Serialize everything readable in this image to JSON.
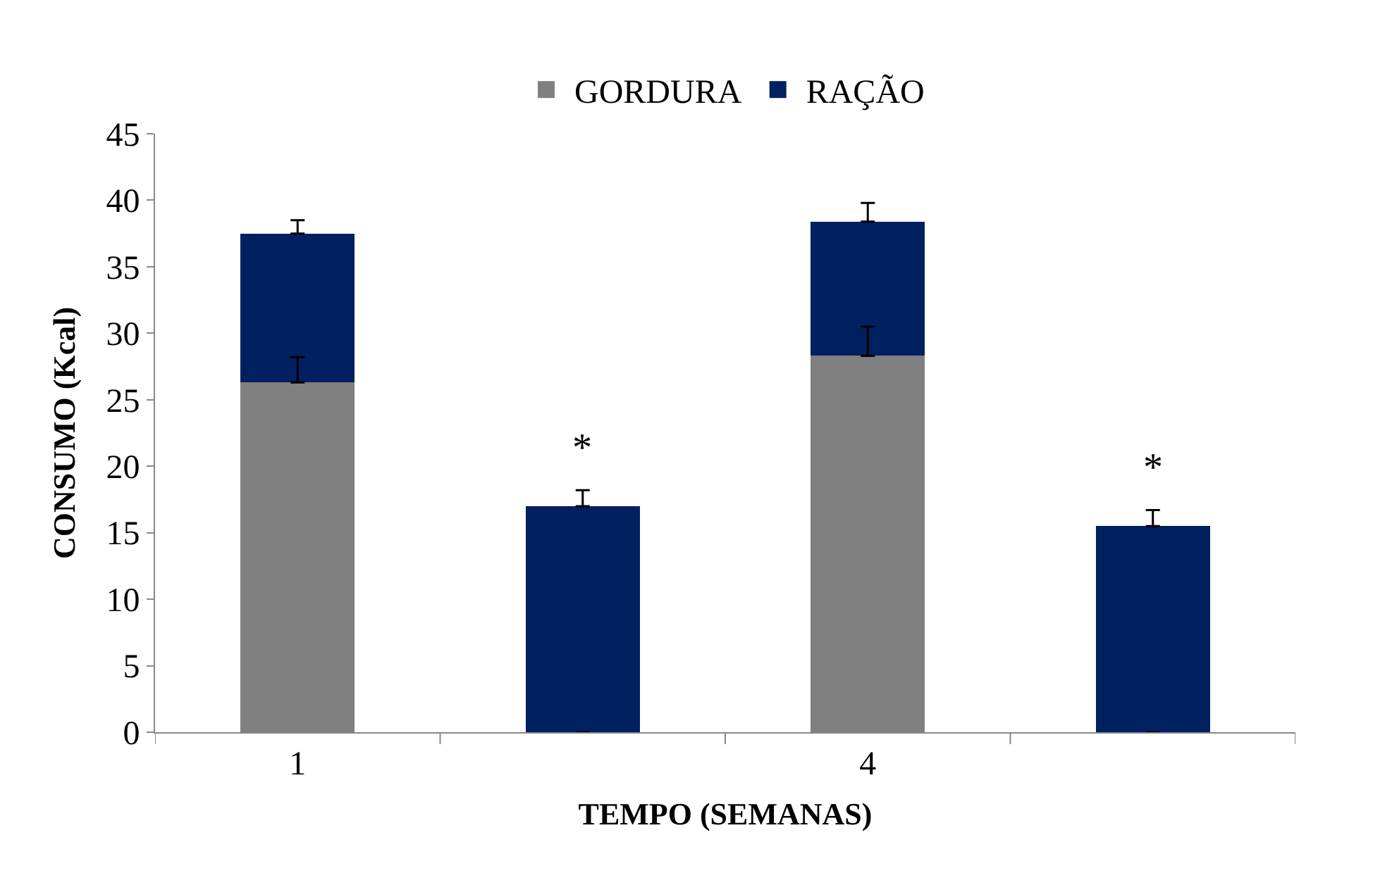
{
  "chart_data": {
    "type": "bar",
    "stacked": true,
    "xlabel": "TEMPO (SEMANAS)",
    "ylabel": "CONSUMO (Kcal)",
    "categories": [
      "1",
      null,
      "4",
      null
    ],
    "series": [
      {
        "name": "GORDURA",
        "color": "#808080",
        "values": [
          26.3,
          null,
          28.3,
          null
        ],
        "errors": [
          [
            26.3,
            28.2
          ],
          null,
          [
            28.3,
            30.5
          ],
          null
        ]
      },
      {
        "name": "RAÇÃO",
        "color": "#002060",
        "values": [
          11.2,
          17.0,
          10.1,
          15.5
        ],
        "errors": [
          [
            37.5,
            38.5
          ],
          [
            17.0,
            18.2
          ],
          [
            38.4,
            39.8
          ],
          [
            15.5,
            16.7
          ]
        ]
      }
    ],
    "ylim": [
      0,
      45
    ],
    "yticks": [
      0,
      5,
      10,
      15,
      20,
      25,
      30,
      35,
      40,
      45
    ],
    "legend": "top",
    "annotations": [
      "*",
      "*"
    ]
  }
}
